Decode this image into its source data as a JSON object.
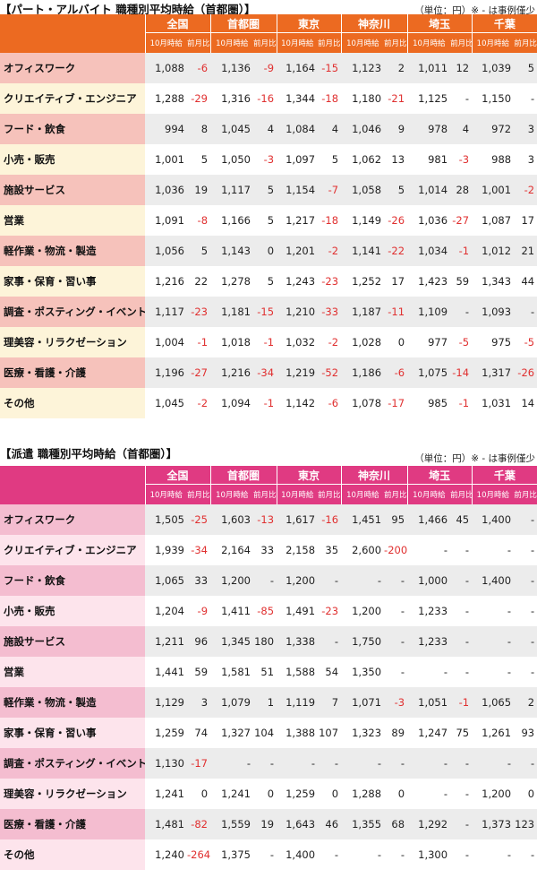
{
  "colors": {
    "part_header": "#ec6a21",
    "haken_header": "#e03a82",
    "part_label_a": "#f6c2bb",
    "part_label_b": "#fdf4d9",
    "haken_label_a": "#f4bdd0",
    "haken_label_b": "#fde4ec",
    "negative": "#e03030"
  },
  "part": {
    "title": "【パート・アルバイト 職種別平均時給（首都圏）】",
    "unit": "（単位：円）※ - は事例僅少",
    "regions": [
      "全国",
      "首都圏",
      "東京",
      "神奈川",
      "埼玉",
      "千葉"
    ],
    "sub_headers": [
      "10月時給",
      "前月比"
    ],
    "rows": [
      {
        "label": "オフィスワーク",
        "cells": [
          "1,088",
          "-6",
          "1,136",
          "-9",
          "1,164",
          "-15",
          "1,123",
          "2",
          "1,011",
          "12",
          "1,039",
          "5"
        ]
      },
      {
        "label": "クリエイティブ・エンジニア",
        "cells": [
          "1,288",
          "-29",
          "1,316",
          "-16",
          "1,344",
          "-18",
          "1,180",
          "-21",
          "1,125",
          "-",
          "1,150",
          "-"
        ]
      },
      {
        "label": "フード・飲食",
        "cells": [
          "994",
          "8",
          "1,045",
          "4",
          "1,084",
          "4",
          "1,046",
          "9",
          "978",
          "4",
          "972",
          "3"
        ]
      },
      {
        "label": "小売・販売",
        "cells": [
          "1,001",
          "5",
          "1,050",
          "-3",
          "1,097",
          "5",
          "1,062",
          "13",
          "981",
          "-3",
          "988",
          "3"
        ]
      },
      {
        "label": "施設サービス",
        "cells": [
          "1,036",
          "19",
          "1,117",
          "5",
          "1,154",
          "-7",
          "1,058",
          "5",
          "1,014",
          "28",
          "1,001",
          "-2"
        ]
      },
      {
        "label": "営業",
        "cells": [
          "1,091",
          "-8",
          "1,166",
          "5",
          "1,217",
          "-18",
          "1,149",
          "-26",
          "1,036",
          "-27",
          "1,087",
          "17"
        ]
      },
      {
        "label": "軽作業・物流・製造",
        "cells": [
          "1,056",
          "5",
          "1,143",
          "0",
          "1,201",
          "-2",
          "1,141",
          "-22",
          "1,034",
          "-1",
          "1,012",
          "21"
        ]
      },
      {
        "label": "家事・保育・習い事",
        "cells": [
          "1,216",
          "22",
          "1,278",
          "5",
          "1,243",
          "-23",
          "1,252",
          "17",
          "1,423",
          "59",
          "1,343",
          "44"
        ]
      },
      {
        "label": "調査・ポスティング・イベント",
        "cells": [
          "1,117",
          "-23",
          "1,181",
          "-15",
          "1,210",
          "-33",
          "1,187",
          "-11",
          "1,109",
          "-",
          "1,093",
          "-"
        ]
      },
      {
        "label": "理美容・リラクゼーション",
        "cells": [
          "1,004",
          "-1",
          "1,018",
          "-1",
          "1,032",
          "-2",
          "1,028",
          "0",
          "977",
          "-5",
          "975",
          "-5"
        ]
      },
      {
        "label": "医療・看護・介護",
        "cells": [
          "1,196",
          "-27",
          "1,216",
          "-34",
          "1,219",
          "-52",
          "1,186",
          "-6",
          "1,075",
          "-14",
          "1,317",
          "-26"
        ]
      },
      {
        "label": "その他",
        "cells": [
          "1,045",
          "-2",
          "1,094",
          "-1",
          "1,142",
          "-6",
          "1,078",
          "-17",
          "985",
          "-1",
          "1,031",
          "14"
        ]
      }
    ]
  },
  "haken": {
    "title": "【派遣 職種別平均時給（首都圏）】",
    "unit": "（単位：円）※ - は事例僅少",
    "regions": [
      "全国",
      "首都圏",
      "東京",
      "神奈川",
      "埼玉",
      "千葉"
    ],
    "sub_headers": [
      "10月時給",
      "前月比"
    ],
    "rows": [
      {
        "label": "オフィスワーク",
        "cells": [
          "1,505",
          "-25",
          "1,603",
          "-13",
          "1,617",
          "-16",
          "1,451",
          "95",
          "1,466",
          "45",
          "1,400",
          "-"
        ]
      },
      {
        "label": "クリエイティブ・エンジニア",
        "cells": [
          "1,939",
          "-34",
          "2,164",
          "33",
          "2,158",
          "35",
          "2,600",
          "-200",
          "-",
          "-",
          "-",
          "-"
        ]
      },
      {
        "label": "フード・飲食",
        "cells": [
          "1,065",
          "33",
          "1,200",
          "-",
          "1,200",
          "-",
          "-",
          "-",
          "1,000",
          "-",
          "1,400",
          "-"
        ]
      },
      {
        "label": "小売・販売",
        "cells": [
          "1,204",
          "-9",
          "1,411",
          "-85",
          "1,491",
          "-23",
          "1,200",
          "-",
          "1,233",
          "-",
          "-",
          "-"
        ]
      },
      {
        "label": "施設サービス",
        "cells": [
          "1,211",
          "96",
          "1,345",
          "180",
          "1,338",
          "-",
          "1,750",
          "-",
          "1,233",
          "-",
          "-",
          "-"
        ]
      },
      {
        "label": "営業",
        "cells": [
          "1,441",
          "59",
          "1,581",
          "51",
          "1,588",
          "54",
          "1,350",
          "-",
          "-",
          "-",
          "-",
          "-"
        ]
      },
      {
        "label": "軽作業・物流・製造",
        "cells": [
          "1,129",
          "3",
          "1,079",
          "1",
          "1,119",
          "7",
          "1,071",
          "-3",
          "1,051",
          "-1",
          "1,065",
          "2"
        ]
      },
      {
        "label": "家事・保育・習い事",
        "cells": [
          "1,259",
          "74",
          "1,327",
          "104",
          "1,388",
          "107",
          "1,323",
          "89",
          "1,247",
          "75",
          "1,261",
          "93"
        ]
      },
      {
        "label": "調査・ポスティング・イベント",
        "cells": [
          "1,130",
          "-17",
          "-",
          "-",
          "-",
          "-",
          "-",
          "-",
          "-",
          "-",
          "-",
          "-"
        ]
      },
      {
        "label": "理美容・リラクゼーション",
        "cells": [
          "1,241",
          "0",
          "1,241",
          "0",
          "1,259",
          "0",
          "1,288",
          "0",
          "-",
          "-",
          "1,200",
          "0"
        ]
      },
      {
        "label": "医療・看護・介護",
        "cells": [
          "1,481",
          "-82",
          "1,559",
          "19",
          "1,643",
          "46",
          "1,355",
          "68",
          "1,292",
          "-",
          "1,373",
          "123"
        ]
      },
      {
        "label": "その他",
        "cells": [
          "1,240",
          "-264",
          "1,375",
          "-",
          "1,400",
          "-",
          "-",
          "-",
          "1,300",
          "-",
          "-",
          "-"
        ]
      }
    ]
  }
}
